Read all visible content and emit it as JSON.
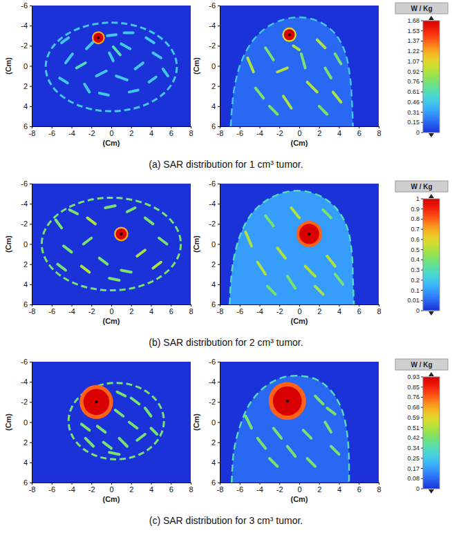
{
  "chart_data": [
    {
      "type": "heatmap",
      "title": "(a) SAR distribution for 1 cm³ tumor.",
      "xlabel": "(Cm)",
      "ylabel": "(Cm)",
      "xlim": [
        -8,
        8
      ],
      "ylim": [
        -6,
        6
      ],
      "xticks": [
        -8,
        -6,
        -4,
        -2,
        0,
        2,
        4,
        6,
        8
      ],
      "yticks": [
        -6,
        -4,
        -2,
        0,
        2,
        4,
        6
      ],
      "colorbar": {
        "title": "W / Kg",
        "range": [
          0,
          1.68
        ],
        "ticks": [
          0,
          0.15,
          0.31,
          0.46,
          0.61,
          0.76,
          0.92,
          1.07,
          1.22,
          1.37,
          1.53,
          1.68
        ]
      },
      "panels": [
        {
          "ellipse": {
            "cx": 0,
            "cy": 0.1,
            "rx": 6.6,
            "ry": 4.4,
            "value": 0.46
          },
          "fill_value": 0,
          "tumor": {
            "x": -1.3,
            "y": -2.8,
            "r": 0.5,
            "value": 1.68,
            "edge_value": 1.22
          },
          "tissue": [
            [
              -5,
              -2.3,
              -4.3,
              -2.8,
              0.46
            ],
            [
              -4.6,
              -0.3,
              -3.9,
              -1.2,
              0.46
            ],
            [
              -2.5,
              -1.7,
              -1.7,
              -2.5,
              0.46
            ],
            [
              -0.4,
              -3.0,
              0.5,
              -3.1,
              0.46
            ],
            [
              1.3,
              -3.3,
              2.2,
              -3.3,
              0.46
            ],
            [
              3.5,
              -2.8,
              4.3,
              -2.3,
              0.46
            ],
            [
              1,
              -2.2,
              1.9,
              -1.7,
              0.46
            ],
            [
              -0.2,
              -1.3,
              0.2,
              -0.5,
              0.46
            ],
            [
              -5.2,
              1.2,
              -4.4,
              1.7,
              0.46
            ],
            [
              -3.5,
              0.2,
              -2.6,
              -0.3,
              0.61
            ],
            [
              -2.7,
              1.8,
              -2.2,
              2.6,
              0.46
            ],
            [
              -1.5,
              1.0,
              -0.5,
              0.5,
              0.46
            ],
            [
              0.5,
              1.0,
              1.6,
              1.4,
              0.46
            ],
            [
              2.4,
              0.3,
              3.2,
              -0.3,
              0.46
            ],
            [
              4.2,
              -1.3,
              5,
              -0.8,
              0.46
            ],
            [
              3.8,
              1.6,
              4.5,
              1.1,
              0.46
            ],
            [
              1.8,
              2.6,
              2.7,
              2.4,
              0.46
            ],
            [
              -1.2,
              2.7,
              -0.3,
              2.9,
              0.46
            ],
            [
              0.2,
              -1.9,
              0.9,
              -1.1,
              0.61
            ],
            [
              5.2,
              0.3,
              5.7,
              1.0,
              0.46
            ]
          ]
        },
        {
          "outline": {
            "points": [
              [
                -6.9,
                6
              ],
              [
                -6.8,
                4.5
              ],
              [
                -6.5,
                2.0
              ],
              [
                -5.8,
                -0.5
              ],
              [
                -4.6,
                -2.6
              ],
              [
                -3.0,
                -4.0
              ],
              [
                -1.2,
                -4.7
              ],
              [
                0.5,
                -4.8
              ],
              [
                2.2,
                -4.3
              ],
              [
                3.6,
                -3.2
              ],
              [
                4.6,
                -1.4
              ],
              [
                5.1,
                1.0
              ],
              [
                5.3,
                3.5
              ],
              [
                5.4,
                6
              ]
            ],
            "value": 0.46
          },
          "fill_value": 0.15,
          "tumor": {
            "x": -1,
            "y": -3.1,
            "r": 0.55,
            "value": 1.68,
            "edge_value": 1.07
          },
          "tissue": [
            [
              -5.2,
              -0.8,
              -4.6,
              0.6,
              0.92
            ],
            [
              -4.4,
              2.2,
              -3.6,
              3.2,
              0.76
            ],
            [
              -3.4,
              -1.8,
              -2.6,
              -0.6,
              0.76
            ],
            [
              -2.2,
              0.6,
              -1.2,
              0.2,
              0.92
            ],
            [
              -1.6,
              3.0,
              -0.8,
              4.2,
              0.92
            ],
            [
              0.2,
              -1.2,
              0.6,
              0.2,
              0.76
            ],
            [
              0.8,
              1.6,
              1.8,
              2.6,
              0.92
            ],
            [
              1.8,
              -2.6,
              2.6,
              -1.8,
              0.92
            ],
            [
              2.6,
              0.2,
              3.2,
              1.2,
              0.76
            ],
            [
              3.4,
              2.6,
              4.2,
              3.6,
              0.92
            ],
            [
              3.6,
              -1.2,
              4.2,
              -0.2,
              0.76
            ],
            [
              -3.0,
              4.0,
              -2.2,
              4.8,
              0.76
            ],
            [
              -0.6,
              -2.0,
              0.0,
              -1.6,
              0.92
            ],
            [
              2.0,
              4.0,
              2.8,
              4.8,
              0.76
            ]
          ]
        }
      ]
    },
    {
      "type": "heatmap",
      "title": "(b) SAR distribution for 2 cm³ tumor.",
      "xlabel": "(Cm)",
      "ylabel": "(Cm)",
      "xlim": [
        -8,
        8
      ],
      "ylim": [
        -6,
        6
      ],
      "xticks": [
        -8,
        -6,
        -4,
        -2,
        0,
        2,
        4,
        6,
        8
      ],
      "yticks": [
        -6,
        -4,
        -2,
        0,
        2,
        4,
        6
      ],
      "colorbar": {
        "title": "W / Kg",
        "range": [
          0,
          1
        ],
        "ticks": [
          0,
          0.01,
          0.1,
          0.2,
          0.3,
          0.4,
          0.5,
          0.6,
          0.7,
          0.8,
          0.9,
          1
        ]
      },
      "panels": [
        {
          "ellipse": {
            "cx": 0,
            "cy": 0,
            "rx": 7,
            "ry": 4.6,
            "value": 0.4
          },
          "fill_value": 0,
          "tumor": {
            "x": 1,
            "y": -1,
            "r": 0.55,
            "value": 1,
            "edge_value": 0.7
          },
          "tissue": [
            [
              -5.6,
              -2.4,
              -5.0,
              -1.6,
              0.4
            ],
            [
              -4.2,
              -3.4,
              -3.4,
              -3.0,
              0.4
            ],
            [
              -2.4,
              -2.6,
              -1.6,
              -2.0,
              0.5
            ],
            [
              -4.8,
              0.2,
              -4.0,
              0.8,
              0.4
            ],
            [
              -2.8,
              0.0,
              -2.0,
              -0.6,
              0.4
            ],
            [
              -5.4,
              2.0,
              -4.6,
              2.6,
              0.4
            ],
            [
              -3.0,
              2.2,
              -2.2,
              2.8,
              0.5
            ],
            [
              -1.2,
              1.4,
              -0.4,
              2.0,
              0.4
            ],
            [
              1.0,
              2.6,
              2.0,
              2.8,
              0.4
            ],
            [
              2.6,
              1.2,
              3.4,
              0.6,
              0.5
            ],
            [
              3.4,
              -2.6,
              4.2,
              -2.0,
              0.4
            ],
            [
              4.8,
              -0.6,
              5.6,
              0.0,
              0.4
            ],
            [
              4.2,
              2.4,
              5.0,
              1.8,
              0.5
            ],
            [
              -0.6,
              -3.6,
              0.4,
              -3.8,
              0.4
            ],
            [
              1.6,
              -3.2,
              2.4,
              -3.6,
              0.4
            ],
            [
              -0.2,
              3.4,
              0.8,
              3.6,
              0.4
            ]
          ]
        },
        {
          "outline": {
            "points": [
              [
                -7,
                6
              ],
              [
                -6.9,
                4.0
              ],
              [
                -6.6,
                1.5
              ],
              [
                -5.9,
                -1.0
              ],
              [
                -4.8,
                -3.0
              ],
              [
                -3.2,
                -4.4
              ],
              [
                -1.2,
                -5.2
              ],
              [
                0.8,
                -5.2
              ],
              [
                2.6,
                -4.5
              ],
              [
                4.0,
                -3.2
              ],
              [
                4.9,
                -1.4
              ],
              [
                5.3,
                1.0
              ],
              [
                5.4,
                3.5
              ],
              [
                5.5,
                6
              ]
            ],
            "value": 0.3
          },
          "fill_value": 0.1,
          "tumor": {
            "x": 1,
            "y": -1,
            "r": 1.0,
            "value": 1,
            "edge_value": 0.8
          },
          "tissue": [
            [
              -5.4,
              -1.2,
              -4.8,
              0.2,
              0.5
            ],
            [
              -4.2,
              1.8,
              -3.4,
              3.0,
              0.5
            ],
            [
              -3.4,
              -2.8,
              -2.6,
              -1.8,
              0.4
            ],
            [
              -2.2,
              0.4,
              -1.4,
              1.4,
              0.5
            ],
            [
              -1.2,
              3.2,
              -0.4,
              4.4,
              0.4
            ],
            [
              -0.8,
              -3.6,
              0.0,
              -2.6,
              0.5
            ],
            [
              0.6,
              2.2,
              1.6,
              3.2,
              0.5
            ],
            [
              2.4,
              -3.4,
              3.2,
              -2.6,
              0.4
            ],
            [
              2.8,
              1.2,
              3.6,
              2.2,
              0.5
            ],
            [
              3.6,
              3.0,
              4.4,
              4.0,
              0.4
            ],
            [
              -3.2,
              4.2,
              -2.4,
              5.0,
              0.4
            ],
            [
              1.6,
              4.2,
              2.4,
              5.0,
              0.5
            ]
          ]
        }
      ]
    },
    {
      "type": "heatmap",
      "title": "(c) SAR distribution for 3 cm³ tumor.",
      "xlabel": "(Cm)",
      "ylabel": "(Cm)",
      "xlim": [
        -8,
        8
      ],
      "ylim": [
        -6,
        6
      ],
      "xticks": [
        -8,
        -6,
        -4,
        -2,
        0,
        2,
        4,
        6,
        8
      ],
      "yticks": [
        -6,
        -4,
        -2,
        0,
        2,
        4,
        6
      ],
      "colorbar": {
        "title": "W / Kg",
        "range": [
          0,
          0.93
        ],
        "ticks": [
          0,
          0.08,
          0.17,
          0.25,
          0.34,
          0.42,
          0.51,
          0.59,
          0.68,
          0.76,
          0.85,
          0.93
        ]
      },
      "panels": [
        {
          "ellipse": {
            "cx": 0.5,
            "cy": -0.1,
            "rx": 4.8,
            "ry": 3.8,
            "value": 0.42
          },
          "fill_value": 0,
          "tumor": {
            "x": -1.5,
            "y": -2,
            "r": 1.3,
            "value": 0.93,
            "edge_value": 0.76
          },
          "tissue": [
            [
              0.6,
              -3.0,
              1.4,
              -2.6,
              0.42
            ],
            [
              2.0,
              -2.4,
              2.8,
              -1.8,
              0.42
            ],
            [
              3.4,
              -1.4,
              4.0,
              -0.6,
              0.42
            ],
            [
              0.4,
              -1.2,
              1.2,
              -0.6,
              0.42
            ],
            [
              -3.0,
              0.2,
              -2.2,
              0.8,
              0.42
            ],
            [
              -1.4,
              0.4,
              -0.6,
              1.0,
              0.42
            ],
            [
              1.8,
              0.0,
              2.6,
              0.6,
              0.42
            ],
            [
              -2.6,
              1.6,
              -1.8,
              2.4,
              0.42
            ],
            [
              -0.8,
              2.0,
              0.0,
              2.6,
              0.42
            ],
            [
              0.8,
              1.6,
              1.6,
              2.4,
              0.42
            ],
            [
              2.6,
              1.8,
              3.4,
              1.2,
              0.42
            ],
            [
              4.0,
              0.6,
              4.6,
              1.2,
              0.42
            ],
            [
              -0.2,
              3.0,
              0.8,
              3.2,
              0.42
            ]
          ]
        },
        {
          "outline": {
            "points": [
              [
                -6.8,
                6
              ],
              [
                -6.6,
                3.0
              ],
              [
                -6.0,
                0.5
              ],
              [
                -5.0,
                -1.8
              ],
              [
                -3.6,
                -3.4
              ],
              [
                -1.8,
                -4.4
              ],
              [
                0.0,
                -4.6
              ],
              [
                1.8,
                -4.2
              ],
              [
                3.3,
                -3.0
              ],
              [
                4.3,
                -1.2
              ],
              [
                4.8,
                1.0
              ],
              [
                5.0,
                3.5
              ],
              [
                5.0,
                6
              ]
            ],
            "value": 0.34
          },
          "fill_value": 0.08,
          "tumor": {
            "x": -1.2,
            "y": -2.1,
            "r": 1.45,
            "value": 0.93,
            "edge_value": 0.76
          },
          "tissue": [
            [
              -5.4,
              -0.6,
              -4.8,
              0.6,
              0.42
            ],
            [
              -4.2,
              1.6,
              -3.4,
              2.6,
              0.42
            ],
            [
              -2.6,
              0.6,
              -1.8,
              1.6,
              0.42
            ],
            [
              -1.2,
              2.4,
              -0.4,
              3.4,
              0.42
            ],
            [
              0.4,
              0.8,
              1.2,
              1.6,
              0.42
            ],
            [
              1.6,
              -2.6,
              2.4,
              -1.8,
              0.42
            ],
            [
              2.6,
              0.0,
              3.2,
              1.0,
              0.42
            ],
            [
              3.2,
              2.4,
              4.0,
              3.2,
              0.42
            ],
            [
              -3.0,
              3.6,
              -2.2,
              4.4,
              0.42
            ],
            [
              0.8,
              3.6,
              1.6,
              4.4,
              0.42
            ],
            [
              2.8,
              -1.4,
              3.6,
              -0.8,
              0.42
            ]
          ]
        }
      ]
    }
  ]
}
